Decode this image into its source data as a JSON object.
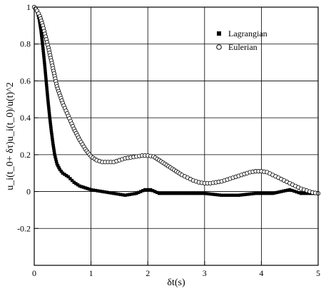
{
  "chart_data": {
    "type": "scatter",
    "xlabel": "δt(s)",
    "ylabel": "u_i(t_0+ δτ)u_i(t_0)/u(t)^2",
    "xlim": [
      0,
      5
    ],
    "ylim": [
      -0.4,
      1.0
    ],
    "x_ticks": [
      "0",
      "1",
      "2",
      "3",
      "4",
      "5"
    ],
    "y_ticks": [
      "-0.2",
      "0",
      "0.2",
      "0.4",
      "0.6",
      "0.8",
      "1"
    ],
    "grid": true,
    "legend_position": "top-right",
    "series": [
      {
        "name": "Lagrangian",
        "marker": "filled-square",
        "color": "#000000",
        "points": [
          [
            0.0,
            1.0
          ],
          [
            0.03,
            0.99
          ],
          [
            0.06,
            0.97
          ],
          [
            0.09,
            0.93
          ],
          [
            0.12,
            0.87
          ],
          [
            0.15,
            0.79
          ],
          [
            0.18,
            0.7
          ],
          [
            0.21,
            0.6
          ],
          [
            0.24,
            0.5
          ],
          [
            0.27,
            0.41
          ],
          [
            0.3,
            0.33
          ],
          [
            0.33,
            0.26
          ],
          [
            0.36,
            0.2
          ],
          [
            0.4,
            0.15
          ],
          [
            0.45,
            0.12
          ],
          [
            0.5,
            0.1
          ],
          [
            0.6,
            0.08
          ],
          [
            0.7,
            0.05
          ],
          [
            0.8,
            0.03
          ],
          [
            0.9,
            0.02
          ],
          [
            1.0,
            0.01
          ],
          [
            1.2,
            0.0
          ],
          [
            1.4,
            -0.01
          ],
          [
            1.6,
            -0.02
          ],
          [
            1.8,
            -0.01
          ],
          [
            1.95,
            0.01
          ],
          [
            2.05,
            0.01
          ],
          [
            2.2,
            -0.01
          ],
          [
            2.5,
            -0.01
          ],
          [
            2.8,
            -0.01
          ],
          [
            3.0,
            -0.01
          ],
          [
            3.3,
            -0.02
          ],
          [
            3.6,
            -0.02
          ],
          [
            3.9,
            -0.01
          ],
          [
            4.2,
            -0.01
          ],
          [
            4.5,
            0.01
          ],
          [
            4.7,
            -0.01
          ],
          [
            5.0,
            -0.01
          ]
        ]
      },
      {
        "name": "Eulerian",
        "marker": "open-circle",
        "color": "#000000",
        "points": [
          [
            0.0,
            1.0
          ],
          [
            0.05,
            0.98
          ],
          [
            0.1,
            0.95
          ],
          [
            0.15,
            0.9
          ],
          [
            0.2,
            0.84
          ],
          [
            0.25,
            0.78
          ],
          [
            0.3,
            0.71
          ],
          [
            0.35,
            0.64
          ],
          [
            0.4,
            0.57
          ],
          [
            0.5,
            0.48
          ],
          [
            0.6,
            0.41
          ],
          [
            0.7,
            0.34
          ],
          [
            0.8,
            0.28
          ],
          [
            0.9,
            0.23
          ],
          [
            1.0,
            0.19
          ],
          [
            1.1,
            0.17
          ],
          [
            1.2,
            0.16
          ],
          [
            1.3,
            0.16
          ],
          [
            1.4,
            0.16
          ],
          [
            1.5,
            0.17
          ],
          [
            1.6,
            0.18
          ],
          [
            1.7,
            0.185
          ],
          [
            1.8,
            0.19
          ],
          [
            1.9,
            0.195
          ],
          [
            2.0,
            0.195
          ],
          [
            2.1,
            0.19
          ],
          [
            2.2,
            0.17
          ],
          [
            2.3,
            0.15
          ],
          [
            2.4,
            0.13
          ],
          [
            2.5,
            0.11
          ],
          [
            2.6,
            0.09
          ],
          [
            2.7,
            0.075
          ],
          [
            2.8,
            0.06
          ],
          [
            2.9,
            0.05
          ],
          [
            3.0,
            0.045
          ],
          [
            3.1,
            0.045
          ],
          [
            3.2,
            0.05
          ],
          [
            3.3,
            0.055
          ],
          [
            3.4,
            0.065
          ],
          [
            3.5,
            0.075
          ],
          [
            3.6,
            0.085
          ],
          [
            3.7,
            0.095
          ],
          [
            3.8,
            0.105
          ],
          [
            3.9,
            0.11
          ],
          [
            4.0,
            0.11
          ],
          [
            4.1,
            0.105
          ],
          [
            4.2,
            0.09
          ],
          [
            4.3,
            0.075
          ],
          [
            4.4,
            0.06
          ],
          [
            4.5,
            0.045
          ],
          [
            4.6,
            0.03
          ],
          [
            4.7,
            0.015
          ],
          [
            4.8,
            0.005
          ],
          [
            4.9,
            -0.005
          ],
          [
            5.0,
            -0.01
          ]
        ]
      }
    ]
  }
}
